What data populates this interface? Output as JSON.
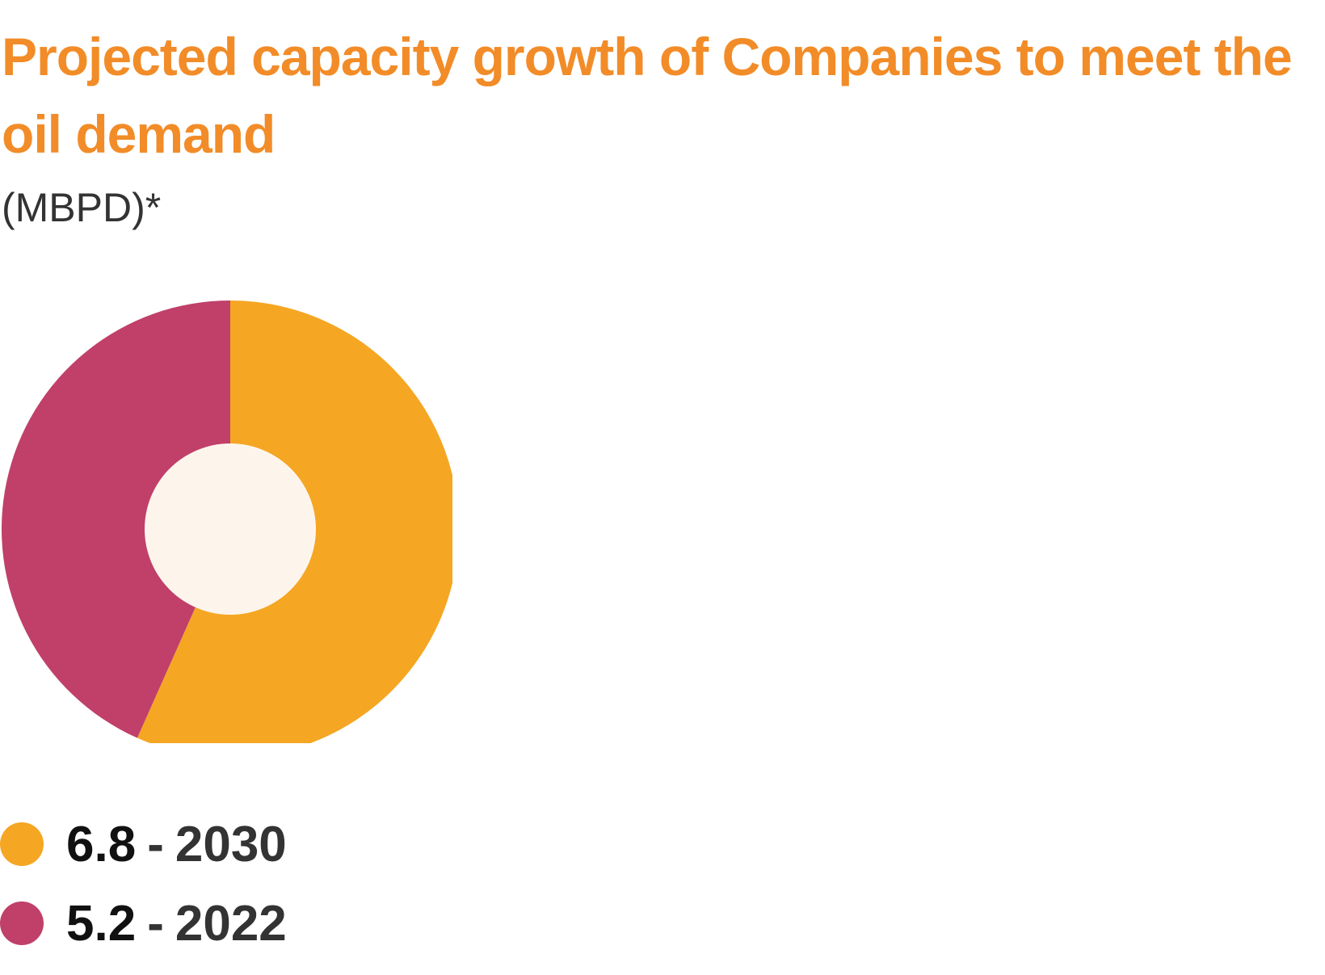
{
  "chart_data": {
    "type": "pie",
    "title": "Projected capacity growth of Companies to meet the oil demand",
    "subtitle": "(MBPD)*",
    "categories": [
      "2030",
      "2022"
    ],
    "values": [
      6.8,
      5.2
    ],
    "value_labels": [
      "6.8",
      "5.2"
    ],
    "colors": [
      "#F5A623",
      "#C0406A"
    ],
    "center_color": "#FDF5EC",
    "legend": [
      {
        "value": "6.8",
        "label": "2030",
        "color": "#F5A623"
      },
      {
        "value": "5.2",
        "label": "2022",
        "color": "#C0406A"
      }
    ],
    "separator": "-",
    "legend_position": "bottom-left",
    "grid": false
  }
}
